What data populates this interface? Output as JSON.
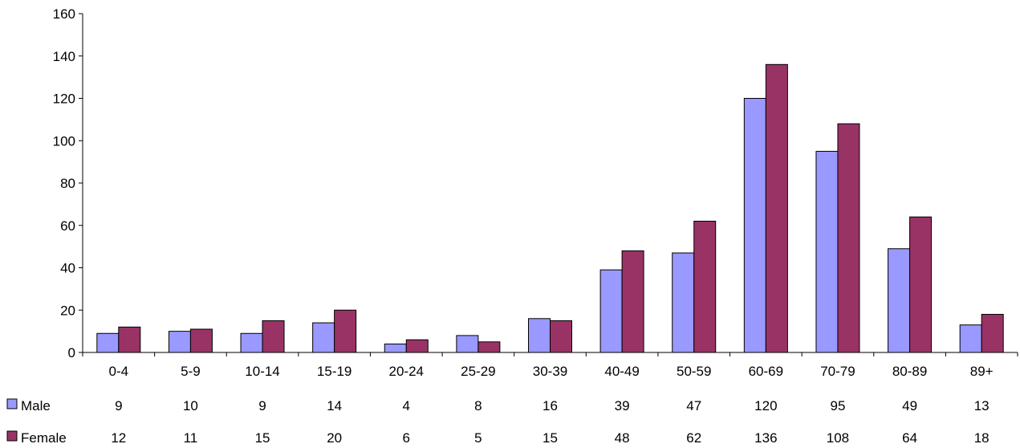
{
  "chart_data": {
    "type": "bar",
    "categories": [
      "0-4",
      "5-9",
      "10-14",
      "15-19",
      "20-24",
      "25-29",
      "30-39",
      "40-49",
      "50-59",
      "60-69",
      "70-79",
      "80-89",
      "89+"
    ],
    "series": [
      {
        "name": "Male",
        "color": "#9999FF",
        "values": [
          9,
          10,
          9,
          14,
          4,
          8,
          16,
          39,
          47,
          120,
          95,
          49,
          13
        ]
      },
      {
        "name": "Female",
        "color": "#993366",
        "values": [
          12,
          11,
          15,
          20,
          6,
          5,
          15,
          48,
          62,
          136,
          108,
          64,
          18
        ]
      }
    ],
    "ylim": [
      0,
      160
    ],
    "yticks": [
      0,
      20,
      40,
      60,
      80,
      100,
      120,
      140,
      160
    ],
    "grid": false,
    "legend": "data-table-left",
    "data_table": true
  }
}
